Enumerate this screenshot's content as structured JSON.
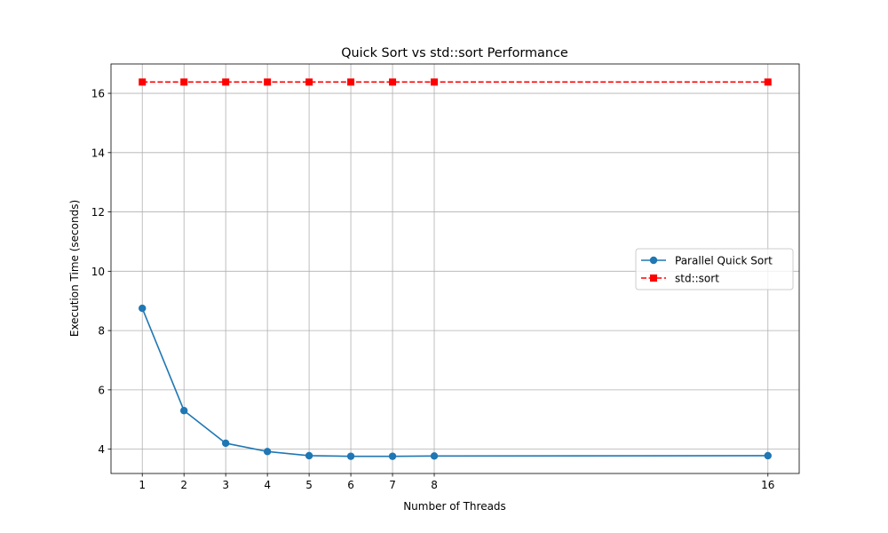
{
  "chart_data": {
    "type": "line",
    "title": "Quick Sort vs std::sort Performance",
    "xlabel": "Number of Threads",
    "ylabel": "Execution Time (seconds)",
    "x": [
      1,
      2,
      3,
      4,
      5,
      6,
      7,
      8,
      16
    ],
    "x_ticks": [
      1,
      2,
      3,
      4,
      5,
      6,
      7,
      8,
      16
    ],
    "y_ticks": [
      4,
      6,
      8,
      10,
      12,
      14,
      16
    ],
    "xlim": [
      0.25,
      16.75
    ],
    "ylim": [
      3.18,
      16.99
    ],
    "grid": true,
    "legend_position": "center-right",
    "series": [
      {
        "name": "Parallel Quick Sort",
        "color": "#1f77b4",
        "marker": "circle",
        "linestyle": "solid",
        "values": [
          8.75,
          5.3,
          4.2,
          3.92,
          3.78,
          3.76,
          3.76,
          3.77,
          3.78
        ]
      },
      {
        "name": "std::sort",
        "color": "#ff0000",
        "marker": "square",
        "linestyle": "dashed",
        "values": [
          16.38,
          16.38,
          16.38,
          16.38,
          16.38,
          16.38,
          16.38,
          16.38,
          16.38
        ]
      }
    ]
  }
}
